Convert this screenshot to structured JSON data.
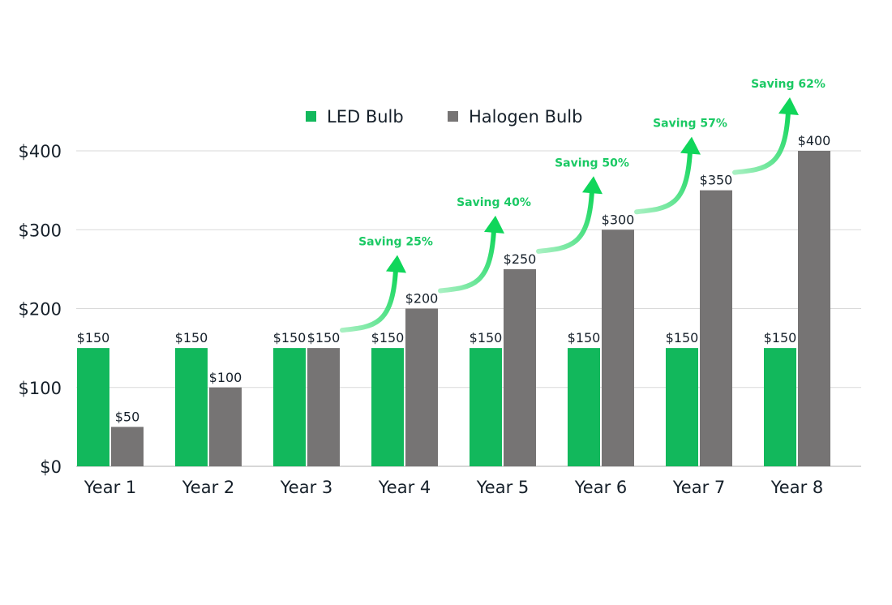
{
  "chart_data": {
    "type": "bar",
    "title": "",
    "xlabel": "",
    "ylabel": "",
    "categories": [
      "Year 1",
      "Year 2",
      "Year 3",
      "Year 4",
      "Year 5",
      "Year 6",
      "Year 7",
      "Year 8"
    ],
    "series": [
      {
        "name": "LED Bulb",
        "color": "#12b85c",
        "values": [
          150,
          150,
          150,
          150,
          150,
          150,
          150,
          150
        ],
        "labels": [
          "$150",
          "$150",
          "$150",
          "$150",
          "$150",
          "$150",
          "$150",
          "$150"
        ]
      },
      {
        "name": "Halogen Bulb",
        "color": "#767474",
        "values": [
          50,
          100,
          150,
          200,
          250,
          300,
          350,
          400
        ],
        "labels": [
          "$50",
          "$100",
          "$150",
          "$200",
          "$250",
          "$300",
          "$350",
          "$400"
        ]
      }
    ],
    "ylim": [
      0,
      400
    ],
    "yticks": [
      0,
      100,
      200,
      300,
      400
    ],
    "ytick_labels": [
      "$0",
      "$100",
      "$200",
      "$300",
      "$400"
    ],
    "grid": true,
    "legend_position": "top",
    "annotations": [
      {
        "text": "Saving 25%",
        "category": "Year 4"
      },
      {
        "text": "Saving 40%",
        "category": "Year 5"
      },
      {
        "text": "Saving 50%",
        "category": "Year 6"
      },
      {
        "text": "Saving 57%",
        "category": "Year 7"
      },
      {
        "text": "Saving 62%",
        "category": "Year 8"
      }
    ],
    "annotation_color": "#1bc964"
  }
}
